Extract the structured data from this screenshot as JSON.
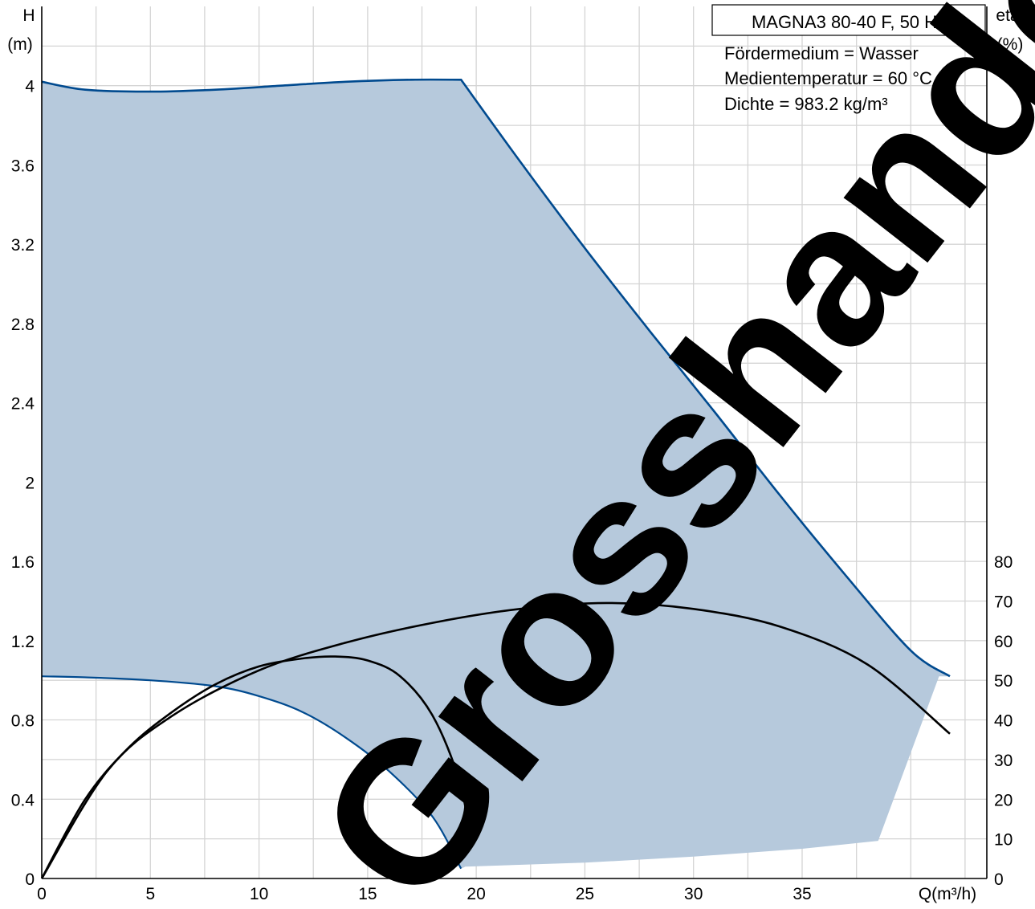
{
  "chart_data": {
    "type": "line",
    "title": "MAGNA3 80-40 F, 50 Hz",
    "annotations": [
      "Fördermedium = Wasser",
      "Medientemperatur = 60 °C",
      "Dichte = 983.2 kg/m³"
    ],
    "watermark": "Grosshandel",
    "xlabel": "Q(m³/h)",
    "ylabel_left": [
      "H",
      "(m)"
    ],
    "ylabel_right": [
      "eta",
      "(%)"
    ],
    "xlim": [
      0,
      43.5
    ],
    "ylim_left": [
      0,
      4.4
    ],
    "ylim_right": [
      0,
      80
    ],
    "x_ticks": [
      0,
      5,
      10,
      15,
      20,
      25,
      30,
      35
    ],
    "x_tick_labels": [
      "0",
      "5",
      "10",
      "15",
      "20",
      "25",
      "30",
      "35"
    ],
    "y_left_ticks": [
      0,
      0.4,
      0.8,
      1.2,
      1.6,
      2,
      2.4,
      2.8,
      3.2,
      3.6,
      4
    ],
    "y_left_tick_labels": [
      "0",
      "0.4",
      "0.8",
      "1.2",
      "1.6",
      "2",
      "2.4",
      "2.8",
      "3.2",
      "3.6",
      "4"
    ],
    "y_right_ticks": [
      0,
      10,
      20,
      30,
      40,
      50,
      60,
      70,
      80
    ],
    "y_right_tick_labels": [
      "0",
      "10",
      "20",
      "30",
      "40",
      "50",
      "60",
      "70",
      "80"
    ],
    "grid": true,
    "colors": {
      "curve": "#004a8f",
      "fill": "#b6c9dc",
      "eta": "#000000",
      "grid": "#d4d4d4",
      "watermark": "#3e4650"
    },
    "series": [
      {
        "kind": "head-max",
        "axis": "left",
        "x": [
          0,
          2,
          5,
          8,
          11,
          14,
          17,
          19.3,
          22,
          25,
          28,
          31,
          34,
          37,
          40,
          41.8
        ],
        "y": [
          4.02,
          3.98,
          3.97,
          3.98,
          4.0,
          4.02,
          4.03,
          4.03,
          3.62,
          3.18,
          2.76,
          2.35,
          1.93,
          1.53,
          1.15,
          1.02
        ]
      },
      {
        "kind": "head-min",
        "axis": "left",
        "x": [
          0,
          2,
          5,
          8,
          10,
          12,
          14,
          16,
          18,
          19.3
        ],
        "y": [
          1.02,
          1.015,
          1.0,
          0.97,
          0.92,
          0.84,
          0.71,
          0.54,
          0.31,
          0.05
        ]
      },
      {
        "kind": "head-bottom",
        "axis": "left",
        "x": [
          19.5,
          25,
          30,
          35,
          38.5,
          41.3
        ],
        "y": [
          0.06,
          0.08,
          0.11,
          0.15,
          0.19,
          1.02
        ]
      },
      {
        "kind": "eta-max",
        "axis": "right",
        "x": [
          0,
          3,
          6,
          10,
          14,
          18,
          22,
          26,
          30,
          34,
          38,
          41.8
        ],
        "y": [
          0,
          27,
          41,
          52.5,
          59.5,
          64.5,
          68,
          69.5,
          68,
          63.5,
          54,
          36.5
        ]
      },
      {
        "kind": "eta-min",
        "axis": "right",
        "x": [
          0,
          2,
          4,
          6,
          8,
          10,
          12,
          13.5,
          15,
          16.5,
          18,
          19.2,
          19.8
        ],
        "y": [
          0,
          20,
          33,
          42,
          49,
          53.5,
          55.5,
          56,
          55,
          51,
          41,
          25,
          9
        ]
      }
    ]
  }
}
